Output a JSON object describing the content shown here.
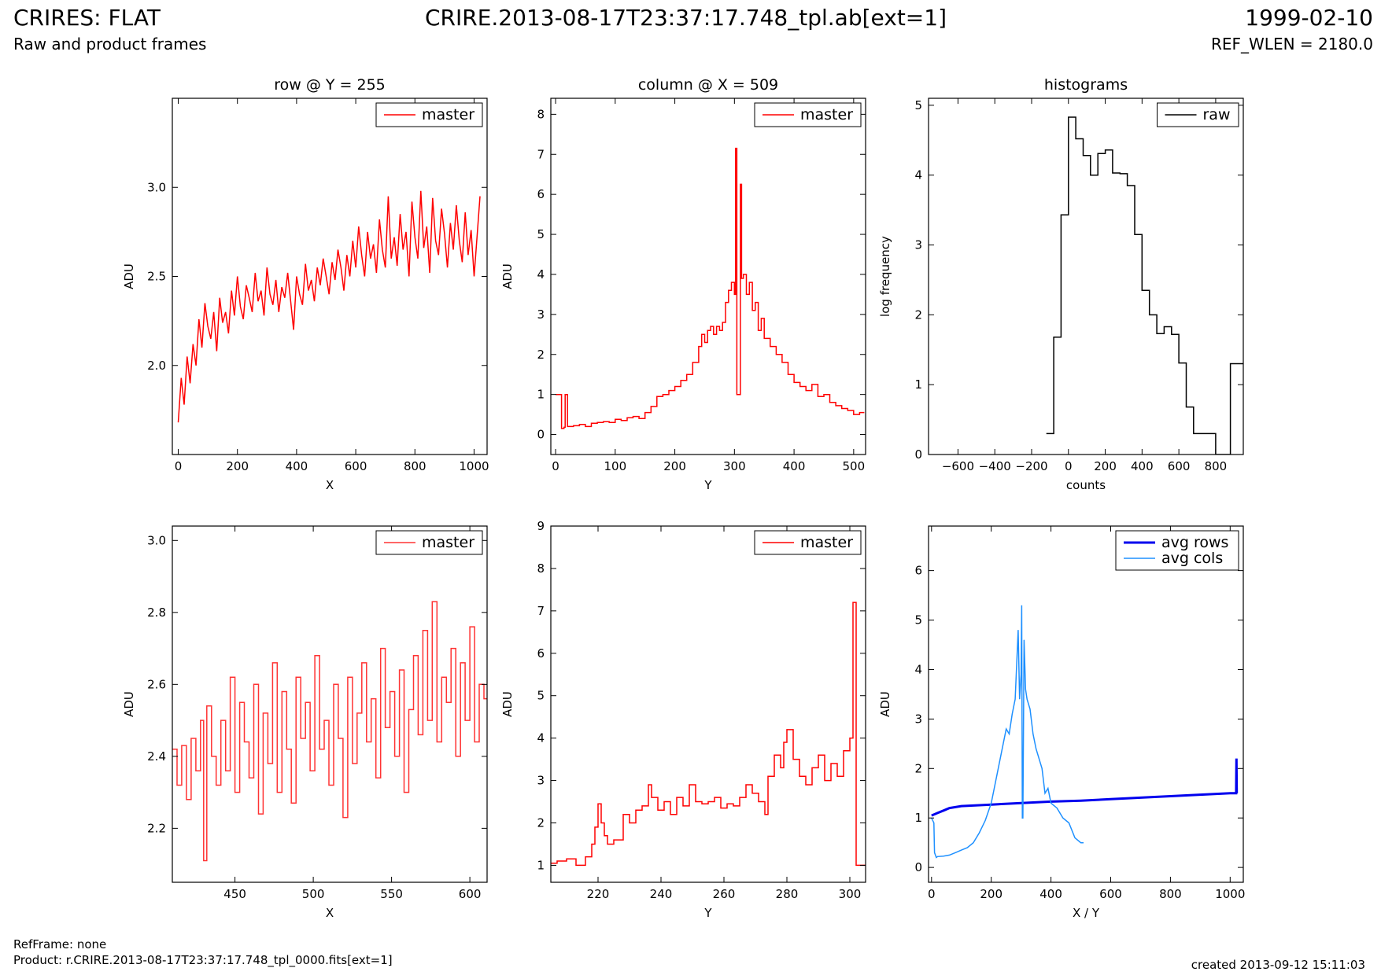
{
  "header": {
    "title": "CRIRES: FLAT",
    "subtitle": "Raw and product frames",
    "file": "CRIRE.2013-08-17T23:37:17.748_tpl.ab[ext=1]",
    "date": "1999-02-10",
    "ref_wlen": "REF_WLEN = 2180.0"
  },
  "footer": {
    "ref_frame": "RefFrame: none",
    "product": "Product: r.CRIRE.2013-08-17T23:37:17.748_tpl_0000.fits[ext=1]",
    "created": "created 2013-09-12 15:11:03"
  },
  "colors": {
    "master": "#ff0000",
    "raw": "#000000",
    "avg_rows": "#0000ee",
    "avg_cols": "#1e90ff"
  },
  "chart_data": [
    {
      "type": "line",
      "title": "row @ Y = 255",
      "xlabel": "X",
      "ylabel": "ADU",
      "xlim": [
        -20,
        1044
      ],
      "ylim": [
        1.5,
        3.5
      ],
      "xticks": [
        0,
        200,
        400,
        600,
        800,
        1000
      ],
      "yticks": [
        2.0,
        2.5,
        3.0
      ],
      "ytick_labels": [
        "2.0",
        "2.5",
        "3.0"
      ],
      "legend": "top-right",
      "series": [
        {
          "name": "master",
          "style": "line",
          "color": "#ff0000",
          "x": [
            0,
            10,
            20,
            30,
            40,
            50,
            60,
            70,
            80,
            90,
            100,
            110,
            120,
            130,
            140,
            150,
            160,
            170,
            180,
            190,
            200,
            210,
            220,
            230,
            240,
            250,
            260,
            270,
            280,
            290,
            300,
            310,
            320,
            330,
            340,
            350,
            360,
            370,
            380,
            390,
            400,
            410,
            420,
            430,
            440,
            450,
            460,
            470,
            480,
            490,
            500,
            510,
            520,
            530,
            540,
            550,
            560,
            570,
            580,
            590,
            600,
            610,
            620,
            630,
            640,
            650,
            660,
            670,
            680,
            690,
            700,
            710,
            720,
            730,
            740,
            750,
            760,
            770,
            780,
            790,
            800,
            810,
            820,
            830,
            840,
            850,
            860,
            870,
            880,
            890,
            900,
            910,
            920,
            930,
            940,
            950,
            960,
            970,
            980,
            990,
            1000,
            1010,
            1020
          ],
          "y": [
            1.68,
            1.93,
            1.78,
            2.05,
            1.9,
            2.12,
            2.0,
            2.26,
            2.1,
            2.35,
            2.22,
            2.15,
            2.3,
            2.08,
            2.38,
            2.24,
            2.3,
            2.18,
            2.42,
            2.28,
            2.5,
            2.33,
            2.26,
            2.45,
            2.38,
            2.3,
            2.52,
            2.36,
            2.42,
            2.28,
            2.55,
            2.4,
            2.34,
            2.48,
            2.3,
            2.44,
            2.38,
            2.52,
            2.36,
            2.2,
            2.5,
            2.4,
            2.34,
            2.57,
            2.42,
            2.48,
            2.36,
            2.55,
            2.45,
            2.6,
            2.5,
            2.4,
            2.58,
            2.48,
            2.65,
            2.55,
            2.42,
            2.62,
            2.5,
            2.7,
            2.55,
            2.78,
            2.62,
            2.5,
            2.75,
            2.6,
            2.68,
            2.52,
            2.82,
            2.65,
            2.55,
            2.95,
            2.6,
            2.72,
            2.56,
            2.85,
            2.65,
            2.75,
            2.5,
            2.92,
            2.72,
            2.6,
            2.98,
            2.66,
            2.78,
            2.52,
            2.94,
            2.7,
            2.62,
            2.88,
            2.74,
            2.55,
            2.8,
            2.65,
            2.9,
            2.7,
            2.58,
            2.86,
            2.62,
            2.76,
            2.5,
            2.72,
            2.95
          ]
        }
      ]
    },
    {
      "type": "line",
      "title": "column @ X = 509",
      "xlabel": "Y",
      "ylabel": "ADU",
      "xlim": [
        -8,
        520
      ],
      "ylim": [
        -0.5,
        8.4
      ],
      "xticks": [
        0,
        100,
        200,
        300,
        400,
        500
      ],
      "yticks": [
        0,
        1,
        2,
        3,
        4,
        5,
        6,
        7,
        8
      ],
      "legend": "top-right",
      "series": [
        {
          "name": "master",
          "style": "step",
          "color": "#ff0000",
          "x": [
            0,
            8,
            10,
            14,
            16,
            20,
            30,
            40,
            50,
            60,
            70,
            80,
            90,
            100,
            110,
            120,
            130,
            140,
            150,
            160,
            170,
            180,
            190,
            200,
            210,
            220,
            230,
            240,
            245,
            250,
            255,
            260,
            265,
            270,
            275,
            280,
            285,
            290,
            295,
            300,
            302,
            304,
            306,
            308,
            310,
            312,
            315,
            320,
            325,
            330,
            335,
            340,
            345,
            350,
            360,
            370,
            380,
            390,
            400,
            410,
            420,
            430,
            440,
            450,
            460,
            470,
            480,
            490,
            500,
            510
          ],
          "y": [
            1.0,
            1.0,
            0.15,
            0.18,
            1.0,
            0.2,
            0.22,
            0.25,
            0.2,
            0.28,
            0.3,
            0.32,
            0.3,
            0.38,
            0.35,
            0.42,
            0.45,
            0.4,
            0.55,
            0.7,
            0.95,
            1.0,
            1.1,
            1.2,
            1.35,
            1.5,
            1.8,
            2.2,
            2.5,
            2.3,
            2.6,
            2.7,
            2.5,
            2.7,
            2.6,
            2.8,
            3.3,
            3.6,
            3.8,
            3.5,
            7.15,
            1.0,
            1.0,
            1.0,
            6.25,
            3.9,
            4.0,
            3.5,
            3.8,
            3.1,
            3.3,
            2.6,
            2.9,
            2.4,
            2.2,
            2.0,
            1.8,
            1.5,
            1.3,
            1.2,
            1.1,
            1.25,
            0.95,
            1.0,
            0.8,
            0.72,
            0.65,
            0.6,
            0.5,
            0.55
          ]
        }
      ]
    },
    {
      "type": "line",
      "title": "histograms",
      "xlabel": "counts",
      "ylabel": "log frequency",
      "xlim": [
        -760,
        950
      ],
      "ylim": [
        0,
        5.1
      ],
      "xticks": [
        -600,
        -400,
        -200,
        0,
        200,
        400,
        600,
        800
      ],
      "yticks": [
        0,
        1,
        2,
        3,
        4,
        5
      ],
      "legend": "top-right",
      "series": [
        {
          "name": "raw",
          "style": "step",
          "color": "#000000",
          "x": [
            -120,
            -80,
            -40,
            0,
            40,
            80,
            120,
            160,
            200,
            240,
            280,
            320,
            360,
            400,
            440,
            480,
            520,
            560,
            600,
            640,
            680,
            720,
            760,
            800,
            840,
            880,
            920,
            950
          ],
          "y": [
            0.3,
            1.68,
            3.43,
            4.83,
            4.52,
            4.28,
            4.0,
            4.31,
            4.36,
            4.03,
            4.02,
            3.85,
            3.15,
            2.35,
            2.0,
            1.73,
            1.83,
            1.72,
            1.31,
            0.68,
            0.3,
            0.3,
            0.3,
            0,
            0,
            1.3,
            1.3,
            1.3
          ]
        }
      ]
    },
    {
      "type": "line",
      "title": "",
      "xlabel": "X",
      "ylabel": "ADU",
      "xlim": [
        410,
        611
      ],
      "ylim": [
        2.05,
        3.04
      ],
      "xticks": [
        450,
        500,
        550,
        600
      ],
      "yticks": [
        2.2,
        2.4,
        2.6,
        2.8,
        3.0
      ],
      "ytick_labels": [
        "2.2",
        "2.4",
        "2.6",
        "2.8",
        "3.0"
      ],
      "legend": "top-right",
      "series": [
        {
          "name": "master",
          "style": "step",
          "color": "#ff3333",
          "x": [
            410,
            413,
            416,
            419,
            422,
            425,
            428,
            430,
            432,
            435,
            438,
            441,
            444,
            447,
            450,
            453,
            456,
            459,
            462,
            465,
            468,
            471,
            474,
            477,
            480,
            483,
            486,
            489,
            492,
            495,
            498,
            501,
            504,
            507,
            510,
            513,
            516,
            519,
            522,
            525,
            528,
            531,
            534,
            537,
            540,
            543,
            546,
            549,
            552,
            555,
            558,
            561,
            564,
            567,
            570,
            573,
            576,
            579,
            582,
            585,
            588,
            591,
            594,
            597,
            600,
            603,
            606,
            609
          ],
          "y": [
            2.42,
            2.32,
            2.43,
            2.28,
            2.45,
            2.36,
            2.5,
            2.11,
            2.54,
            2.4,
            2.32,
            2.5,
            2.36,
            2.62,
            2.3,
            2.55,
            2.44,
            2.34,
            2.6,
            2.24,
            2.52,
            2.38,
            2.66,
            2.3,
            2.58,
            2.42,
            2.27,
            2.62,
            2.45,
            2.55,
            2.36,
            2.68,
            2.42,
            2.5,
            2.32,
            2.6,
            2.45,
            2.23,
            2.62,
            2.38,
            2.52,
            2.66,
            2.44,
            2.56,
            2.34,
            2.7,
            2.48,
            2.58,
            2.4,
            2.64,
            2.3,
            2.53,
            2.68,
            2.46,
            2.75,
            2.5,
            2.83,
            2.44,
            2.62,
            2.55,
            2.7,
            2.4,
            2.66,
            2.5,
            2.76,
            2.44,
            2.6,
            2.56
          ]
        }
      ]
    },
    {
      "type": "line",
      "title": "",
      "xlabel": "Y",
      "ylabel": "ADU",
      "xlim": [
        205,
        305
      ],
      "ylim": [
        0.6,
        9.0
      ],
      "xticks": [
        220,
        240,
        260,
        280,
        300
      ],
      "yticks": [
        1,
        2,
        3,
        4,
        5,
        6,
        7,
        8,
        9
      ],
      "legend": "top-right",
      "series": [
        {
          "name": "master",
          "style": "step",
          "color": "#ff0000",
          "x": [
            205,
            207,
            210,
            213,
            216,
            218,
            219,
            220,
            221,
            222,
            223,
            225,
            228,
            230,
            232,
            234,
            236,
            237,
            239,
            241,
            243,
            245,
            247,
            249,
            251,
            253,
            255,
            257,
            259,
            261,
            263,
            265,
            267,
            269,
            271,
            273,
            274,
            276,
            278,
            279,
            280,
            282,
            284,
            286,
            288,
            290,
            292,
            294,
            296,
            298,
            300,
            301,
            302,
            304
          ],
          "y": [
            1.05,
            1.1,
            1.15,
            1.0,
            1.2,
            1.5,
            1.9,
            2.45,
            2.0,
            1.7,
            1.5,
            1.6,
            2.2,
            2.0,
            2.3,
            2.4,
            2.9,
            2.6,
            2.3,
            2.5,
            2.2,
            2.6,
            2.4,
            2.9,
            2.5,
            2.45,
            2.5,
            2.6,
            2.35,
            2.45,
            2.4,
            2.6,
            2.9,
            2.7,
            2.5,
            2.2,
            3.1,
            3.6,
            3.3,
            3.9,
            4.2,
            3.5,
            3.1,
            2.9,
            3.3,
            3.6,
            3.0,
            3.4,
            3.1,
            3.7,
            4.0,
            7.2,
            1.0,
            1.0
          ]
        }
      ]
    },
    {
      "type": "line",
      "title": "",
      "xlabel": "X / Y",
      "ylabel": "ADU",
      "xlim": [
        -10,
        1044
      ],
      "ylim": [
        -0.3,
        6.9
      ],
      "xticks": [
        0,
        200,
        400,
        600,
        800,
        1000
      ],
      "yticks": [
        0,
        1,
        2,
        3,
        4,
        5,
        6
      ],
      "legend": "top-right",
      "series": [
        {
          "name": "avg rows",
          "style": "line",
          "color": "#0000ee",
          "x": [
            0,
            20,
            40,
            60,
            80,
            100,
            200,
            300,
            400,
            500,
            600,
            700,
            800,
            900,
            1000,
            1020,
            1021,
            1022
          ],
          "y": [
            1.05,
            1.1,
            1.15,
            1.2,
            1.22,
            1.24,
            1.27,
            1.3,
            1.33,
            1.35,
            1.38,
            1.41,
            1.44,
            1.47,
            1.5,
            1.5,
            2.2,
            1.5
          ]
        },
        {
          "name": "avg cols",
          "style": "line",
          "color": "#1e90ff",
          "x": [
            0,
            8,
            10,
            16,
            20,
            40,
            60,
            80,
            100,
            120,
            140,
            160,
            180,
            200,
            210,
            220,
            230,
            240,
            250,
            260,
            270,
            280,
            290,
            295,
            300,
            302,
            304,
            306,
            310,
            315,
            320,
            330,
            340,
            350,
            360,
            370,
            380,
            390,
            400,
            420,
            440,
            460,
            480,
            500,
            509
          ],
          "y": [
            1.0,
            0.9,
            0.3,
            0.2,
            0.22,
            0.23,
            0.25,
            0.3,
            0.35,
            0.4,
            0.5,
            0.7,
            0.95,
            1.3,
            1.6,
            1.9,
            2.2,
            2.5,
            2.8,
            2.7,
            3.1,
            3.4,
            4.8,
            3.4,
            3.9,
            5.3,
            1.0,
            1.0,
            4.6,
            3.6,
            3.4,
            3.2,
            2.7,
            2.4,
            2.2,
            2.0,
            1.5,
            1.6,
            1.3,
            1.2,
            1.0,
            0.9,
            0.6,
            0.5,
            0.5
          ]
        }
      ]
    }
  ]
}
